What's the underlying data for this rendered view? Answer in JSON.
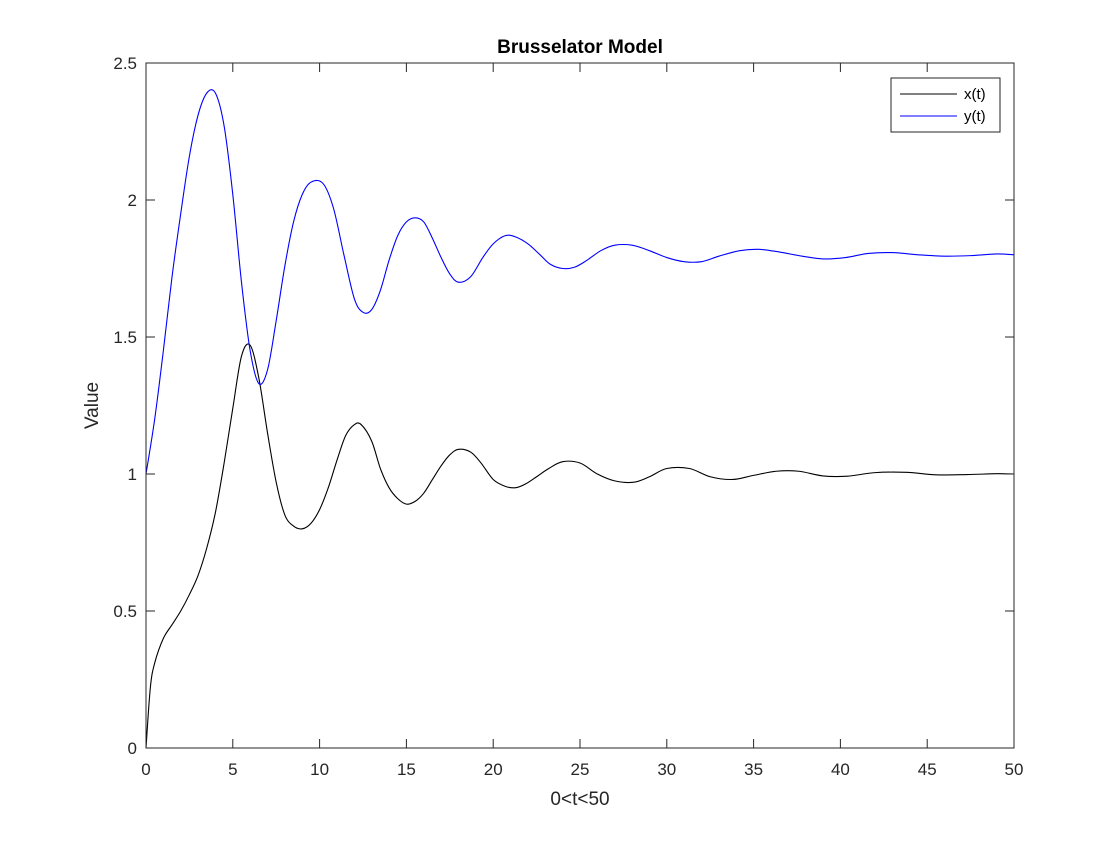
{
  "chart_data": {
    "type": "line",
    "title": "Brusselator Model",
    "xlabel": "0<t<50",
    "ylabel": "Value",
    "xlim": [
      0,
      50
    ],
    "ylim": [
      0,
      2.5
    ],
    "xticks": [
      0,
      5,
      10,
      15,
      20,
      25,
      30,
      35,
      40,
      45,
      50
    ],
    "xtick_labels": [
      "0",
      "5",
      "10",
      "15",
      "20",
      "25",
      "30",
      "35",
      "40",
      "45",
      "50"
    ],
    "yticks": [
      0,
      0.5,
      1,
      1.5,
      2,
      2.5
    ],
    "ytick_labels": [
      "0",
      "0.5",
      "1",
      "1.5",
      "2",
      "2.5"
    ],
    "grid": false,
    "box": true,
    "legend": {
      "position": "top-right"
    },
    "series": [
      {
        "name": "x(t)",
        "color": "#000000",
        "x": [
          0,
          0.25,
          0.5,
          1,
          1.5,
          2,
          2.5,
          3,
          3.5,
          4,
          4.5,
          5,
          5.5,
          6,
          6.5,
          7,
          7.5,
          8,
          8.5,
          9,
          9.5,
          10,
          10.5,
          11,
          11.5,
          12,
          12.4,
          13,
          13.5,
          14,
          14.5,
          15,
          15.5,
          16,
          16.5,
          17,
          17.5,
          18,
          18.7,
          19.3,
          20,
          20.7,
          21.3,
          21.9,
          22.5,
          23.2,
          24,
          25,
          26,
          27,
          28.1,
          29,
          30,
          31.3,
          32.5,
          33.8,
          35,
          36.3,
          37.6,
          39,
          40.4,
          42,
          43.8,
          45.5,
          47.3,
          49,
          50
        ],
        "y": [
          0,
          0.22,
          0.31,
          0.4,
          0.45,
          0.5,
          0.56,
          0.63,
          0.73,
          0.86,
          1.04,
          1.24,
          1.43,
          1.47,
          1.35,
          1.15,
          0.97,
          0.85,
          0.81,
          0.8,
          0.82,
          0.87,
          0.95,
          1.05,
          1.14,
          1.18,
          1.18,
          1.12,
          1.02,
          0.95,
          0.91,
          0.89,
          0.9,
          0.93,
          0.98,
          1.03,
          1.07,
          1.09,
          1.08,
          1.04,
          0.98,
          0.955,
          0.95,
          0.965,
          0.99,
          1.02,
          1.045,
          1.04,
          1.0,
          0.975,
          0.97,
          0.99,
          1.02,
          1.02,
          0.99,
          0.98,
          0.995,
          1.01,
          1.01,
          0.993,
          0.992,
          1.005,
          1.006,
          0.997,
          0.998,
          1.001,
          1.0
        ]
      },
      {
        "name": "y(t)",
        "color": "#0000ff",
        "x": [
          0,
          0.5,
          1,
          1.5,
          2,
          2.5,
          3,
          3.5,
          4,
          4.5,
          5,
          5.5,
          6,
          6.5,
          7,
          7.5,
          8,
          8.5,
          9,
          9.5,
          10.2,
          10.8,
          11.4,
          12,
          12.5,
          13,
          13.5,
          14,
          14.5,
          15,
          15.5,
          16,
          16.5,
          17,
          17.5,
          18,
          18.7,
          19.4,
          20,
          20.7,
          21.3,
          22,
          22.7,
          23.3,
          24,
          24.7,
          25.4,
          26.2,
          27,
          28,
          29,
          30,
          31,
          32,
          33,
          34.2,
          35.3,
          36.5,
          37.8,
          39,
          40.3,
          41.6,
          43,
          44.5,
          46,
          47.5,
          49,
          50
        ],
        "y": [
          1.0,
          1.2,
          1.45,
          1.72,
          1.95,
          2.16,
          2.31,
          2.39,
          2.39,
          2.27,
          2.02,
          1.7,
          1.45,
          1.33,
          1.38,
          1.56,
          1.76,
          1.92,
          2.02,
          2.065,
          2.06,
          1.97,
          1.8,
          1.64,
          1.59,
          1.6,
          1.67,
          1.78,
          1.87,
          1.92,
          1.935,
          1.92,
          1.86,
          1.79,
          1.73,
          1.7,
          1.72,
          1.79,
          1.84,
          1.87,
          1.865,
          1.84,
          1.8,
          1.765,
          1.75,
          1.755,
          1.78,
          1.815,
          1.835,
          1.835,
          1.815,
          1.79,
          1.775,
          1.775,
          1.795,
          1.815,
          1.82,
          1.81,
          1.795,
          1.785,
          1.79,
          1.805,
          1.808,
          1.8,
          1.795,
          1.797,
          1.803,
          1.8
        ]
      }
    ]
  }
}
